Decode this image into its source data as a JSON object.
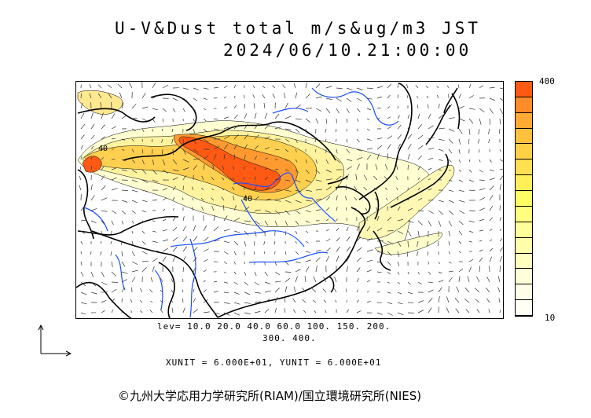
{
  "title": "U-V&Dust total m/s&ug/m3 JST",
  "datetime": "2024/06/10.21:00:00",
  "colorbar": {
    "max_label": "400",
    "min_label": "10",
    "colors": [
      "#ff5a14",
      "#ff8c28",
      "#ffaa32",
      "#ffc03c",
      "#ffd046",
      "#ffe050",
      "#fff05a",
      "#ffff64",
      "#ffff80",
      "#ffff99",
      "#ffffaa",
      "#ffffc0",
      "#ffffd8",
      "#ffffe8",
      "#fffff4"
    ]
  },
  "levels_line1": "lev= 10.0 20.0 40.0 60.0 100. 150. 200.",
  "levels_line2": "300. 400.",
  "units": "XUNIT = 6.000E+01, YUNIT = 6.000E+01",
  "contour_labels": [
    "40",
    "40"
  ],
  "copyright": "©九州大学応用力学研究所(RIAM)/国立環境研究所(NIES)",
  "colors": {
    "coast": "#000000",
    "rivers": "#1a4fff",
    "dust_high": "#ff5a14",
    "dust_low": "#ffffcc"
  }
}
